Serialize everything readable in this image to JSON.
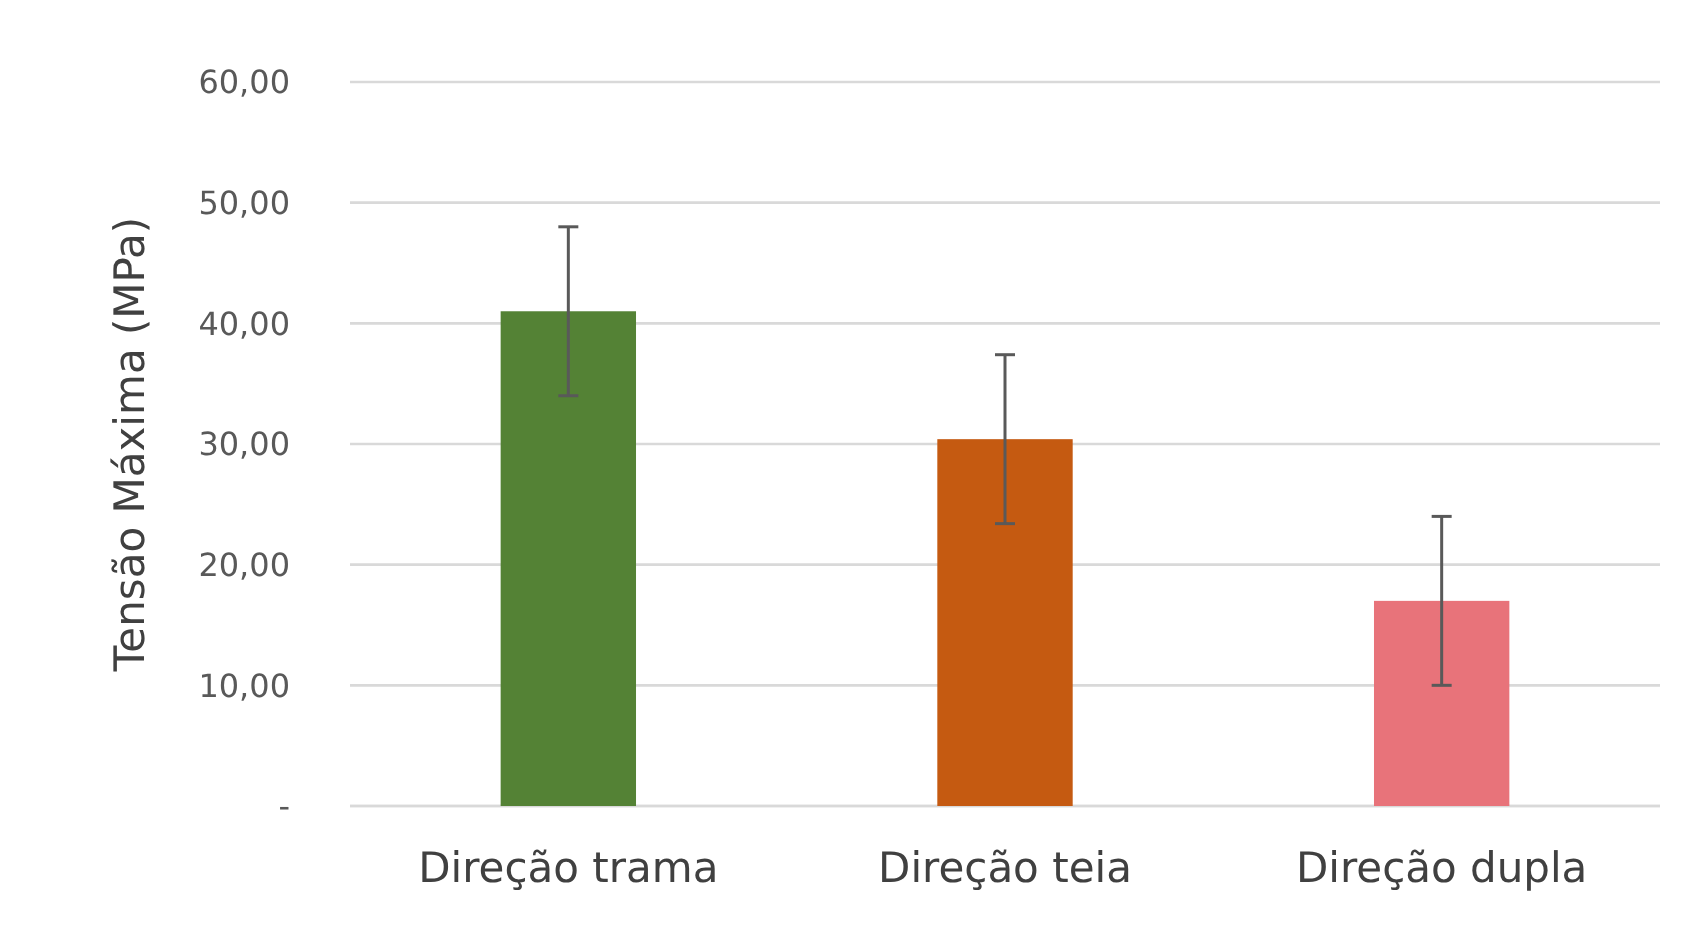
{
  "chart_data": {
    "type": "bar",
    "ylabel": "Tensão Máxima (MPa)",
    "categories": [
      "Direção trama",
      "Direção teia",
      "Direção dupla"
    ],
    "values": [
      41,
      30.4,
      17
    ],
    "errors": [
      7,
      7,
      7
    ],
    "colors": [
      "#548235",
      "#c55a11",
      "#e8737a"
    ],
    "ylim": [
      0,
      60
    ],
    "yticks": [
      {
        "value": 0,
        "label": "-"
      },
      {
        "value": 10,
        "label": "10,00"
      },
      {
        "value": 20,
        "label": "20,00"
      },
      {
        "value": 30,
        "label": "30,00"
      },
      {
        "value": 40,
        "label": "40,00"
      },
      {
        "value": 50,
        "label": "50,00"
      },
      {
        "value": 60,
        "label": "60,00"
      }
    ],
    "grid": "y"
  }
}
